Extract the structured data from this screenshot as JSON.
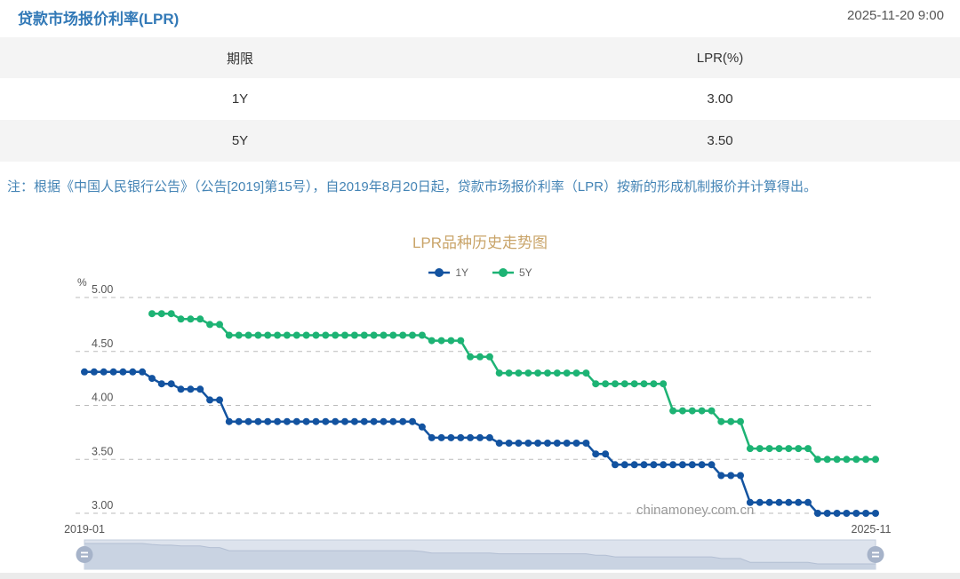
{
  "header": {
    "title": "贷款市场报价利率(LPR)",
    "datetime": "2025-11-20 9:00"
  },
  "table": {
    "columns": [
      "期限",
      "LPR(%)"
    ],
    "rows": [
      [
        "1Y",
        "3.00"
      ],
      [
        "5Y",
        "3.50"
      ]
    ]
  },
  "note": "注：根据《中国人民银行公告》（公告[2019]第15号），自2019年8月20日起，贷款市场报价利率（LPR）按新的形成机制报价并计算得出。",
  "chart_data": {
    "type": "line",
    "title": "LPR品种历史走势图",
    "ylabel": "%",
    "ylim": [
      3.0,
      5.0
    ],
    "yticks": [
      "5.00",
      "4.50",
      "4.00",
      "3.50",
      "3.00"
    ],
    "grid": "horizontal-dashed",
    "legend_position": "top",
    "watermark": "chinamoney.com.cn",
    "x_axis_labels": [
      "2019-01",
      "2025-11"
    ],
    "colors": {
      "y1": "#1353a0",
      "y5": "#1db374",
      "grid": "#bbbbbb",
      "axis_text": "#555555",
      "watermark": "#999999"
    },
    "x": [
      "2019-01",
      "2019-02",
      "2019-03",
      "2019-04",
      "2019-05",
      "2019-06",
      "2019-07",
      "2019-08",
      "2019-09",
      "2019-10",
      "2019-11",
      "2019-12",
      "2020-01",
      "2020-02",
      "2020-03",
      "2020-04",
      "2020-05",
      "2020-06",
      "2020-07",
      "2020-08",
      "2020-09",
      "2020-10",
      "2020-11",
      "2020-12",
      "2021-01",
      "2021-02",
      "2021-03",
      "2021-04",
      "2021-05",
      "2021-06",
      "2021-07",
      "2021-08",
      "2021-09",
      "2021-10",
      "2021-11",
      "2021-12",
      "2022-01",
      "2022-02",
      "2022-03",
      "2022-04",
      "2022-05",
      "2022-06",
      "2022-07",
      "2022-08",
      "2022-09",
      "2022-10",
      "2022-11",
      "2022-12",
      "2023-01",
      "2023-02",
      "2023-03",
      "2023-04",
      "2023-05",
      "2023-06",
      "2023-07",
      "2023-08",
      "2023-09",
      "2023-10",
      "2023-11",
      "2023-12",
      "2024-01",
      "2024-02",
      "2024-03",
      "2024-04",
      "2024-05",
      "2024-06",
      "2024-07",
      "2024-08",
      "2024-09",
      "2024-10",
      "2024-11",
      "2024-12",
      "2025-01",
      "2025-02",
      "2025-03",
      "2025-04",
      "2025-05",
      "2025-06",
      "2025-07",
      "2025-08",
      "2025-09",
      "2025-10",
      "2025-11"
    ],
    "series": [
      {
        "name": "1Y",
        "color": "#1353a0",
        "values": [
          4.31,
          4.31,
          4.31,
          4.31,
          4.31,
          4.31,
          4.31,
          4.25,
          4.2,
          4.2,
          4.15,
          4.15,
          4.15,
          4.05,
          4.05,
          3.85,
          3.85,
          3.85,
          3.85,
          3.85,
          3.85,
          3.85,
          3.85,
          3.85,
          3.85,
          3.85,
          3.85,
          3.85,
          3.85,
          3.85,
          3.85,
          3.85,
          3.85,
          3.85,
          3.85,
          3.8,
          3.7,
          3.7,
          3.7,
          3.7,
          3.7,
          3.7,
          3.7,
          3.65,
          3.65,
          3.65,
          3.65,
          3.65,
          3.65,
          3.65,
          3.65,
          3.65,
          3.65,
          3.55,
          3.55,
          3.45,
          3.45,
          3.45,
          3.45,
          3.45,
          3.45,
          3.45,
          3.45,
          3.45,
          3.45,
          3.45,
          3.35,
          3.35,
          3.35,
          3.1,
          3.1,
          3.1,
          3.1,
          3.1,
          3.1,
          3.1,
          3.0,
          3.0,
          3.0,
          3.0,
          3.0,
          3.0,
          3.0
        ]
      },
      {
        "name": "5Y",
        "color": "#1db374",
        "values": [
          null,
          null,
          null,
          null,
          null,
          null,
          null,
          4.85,
          4.85,
          4.85,
          4.8,
          4.8,
          4.8,
          4.75,
          4.75,
          4.65,
          4.65,
          4.65,
          4.65,
          4.65,
          4.65,
          4.65,
          4.65,
          4.65,
          4.65,
          4.65,
          4.65,
          4.65,
          4.65,
          4.65,
          4.65,
          4.65,
          4.65,
          4.65,
          4.65,
          4.65,
          4.6,
          4.6,
          4.6,
          4.6,
          4.45,
          4.45,
          4.45,
          4.3,
          4.3,
          4.3,
          4.3,
          4.3,
          4.3,
          4.3,
          4.3,
          4.3,
          4.3,
          4.2,
          4.2,
          4.2,
          4.2,
          4.2,
          4.2,
          4.2,
          4.2,
          3.95,
          3.95,
          3.95,
          3.95,
          3.95,
          3.85,
          3.85,
          3.85,
          3.6,
          3.6,
          3.6,
          3.6,
          3.6,
          3.6,
          3.6,
          3.5,
          3.5,
          3.5,
          3.5,
          3.5,
          3.5,
          3.5
        ]
      }
    ]
  },
  "slider": {
    "range_start_label": "2019-01",
    "range_end_label": "2025-11"
  }
}
